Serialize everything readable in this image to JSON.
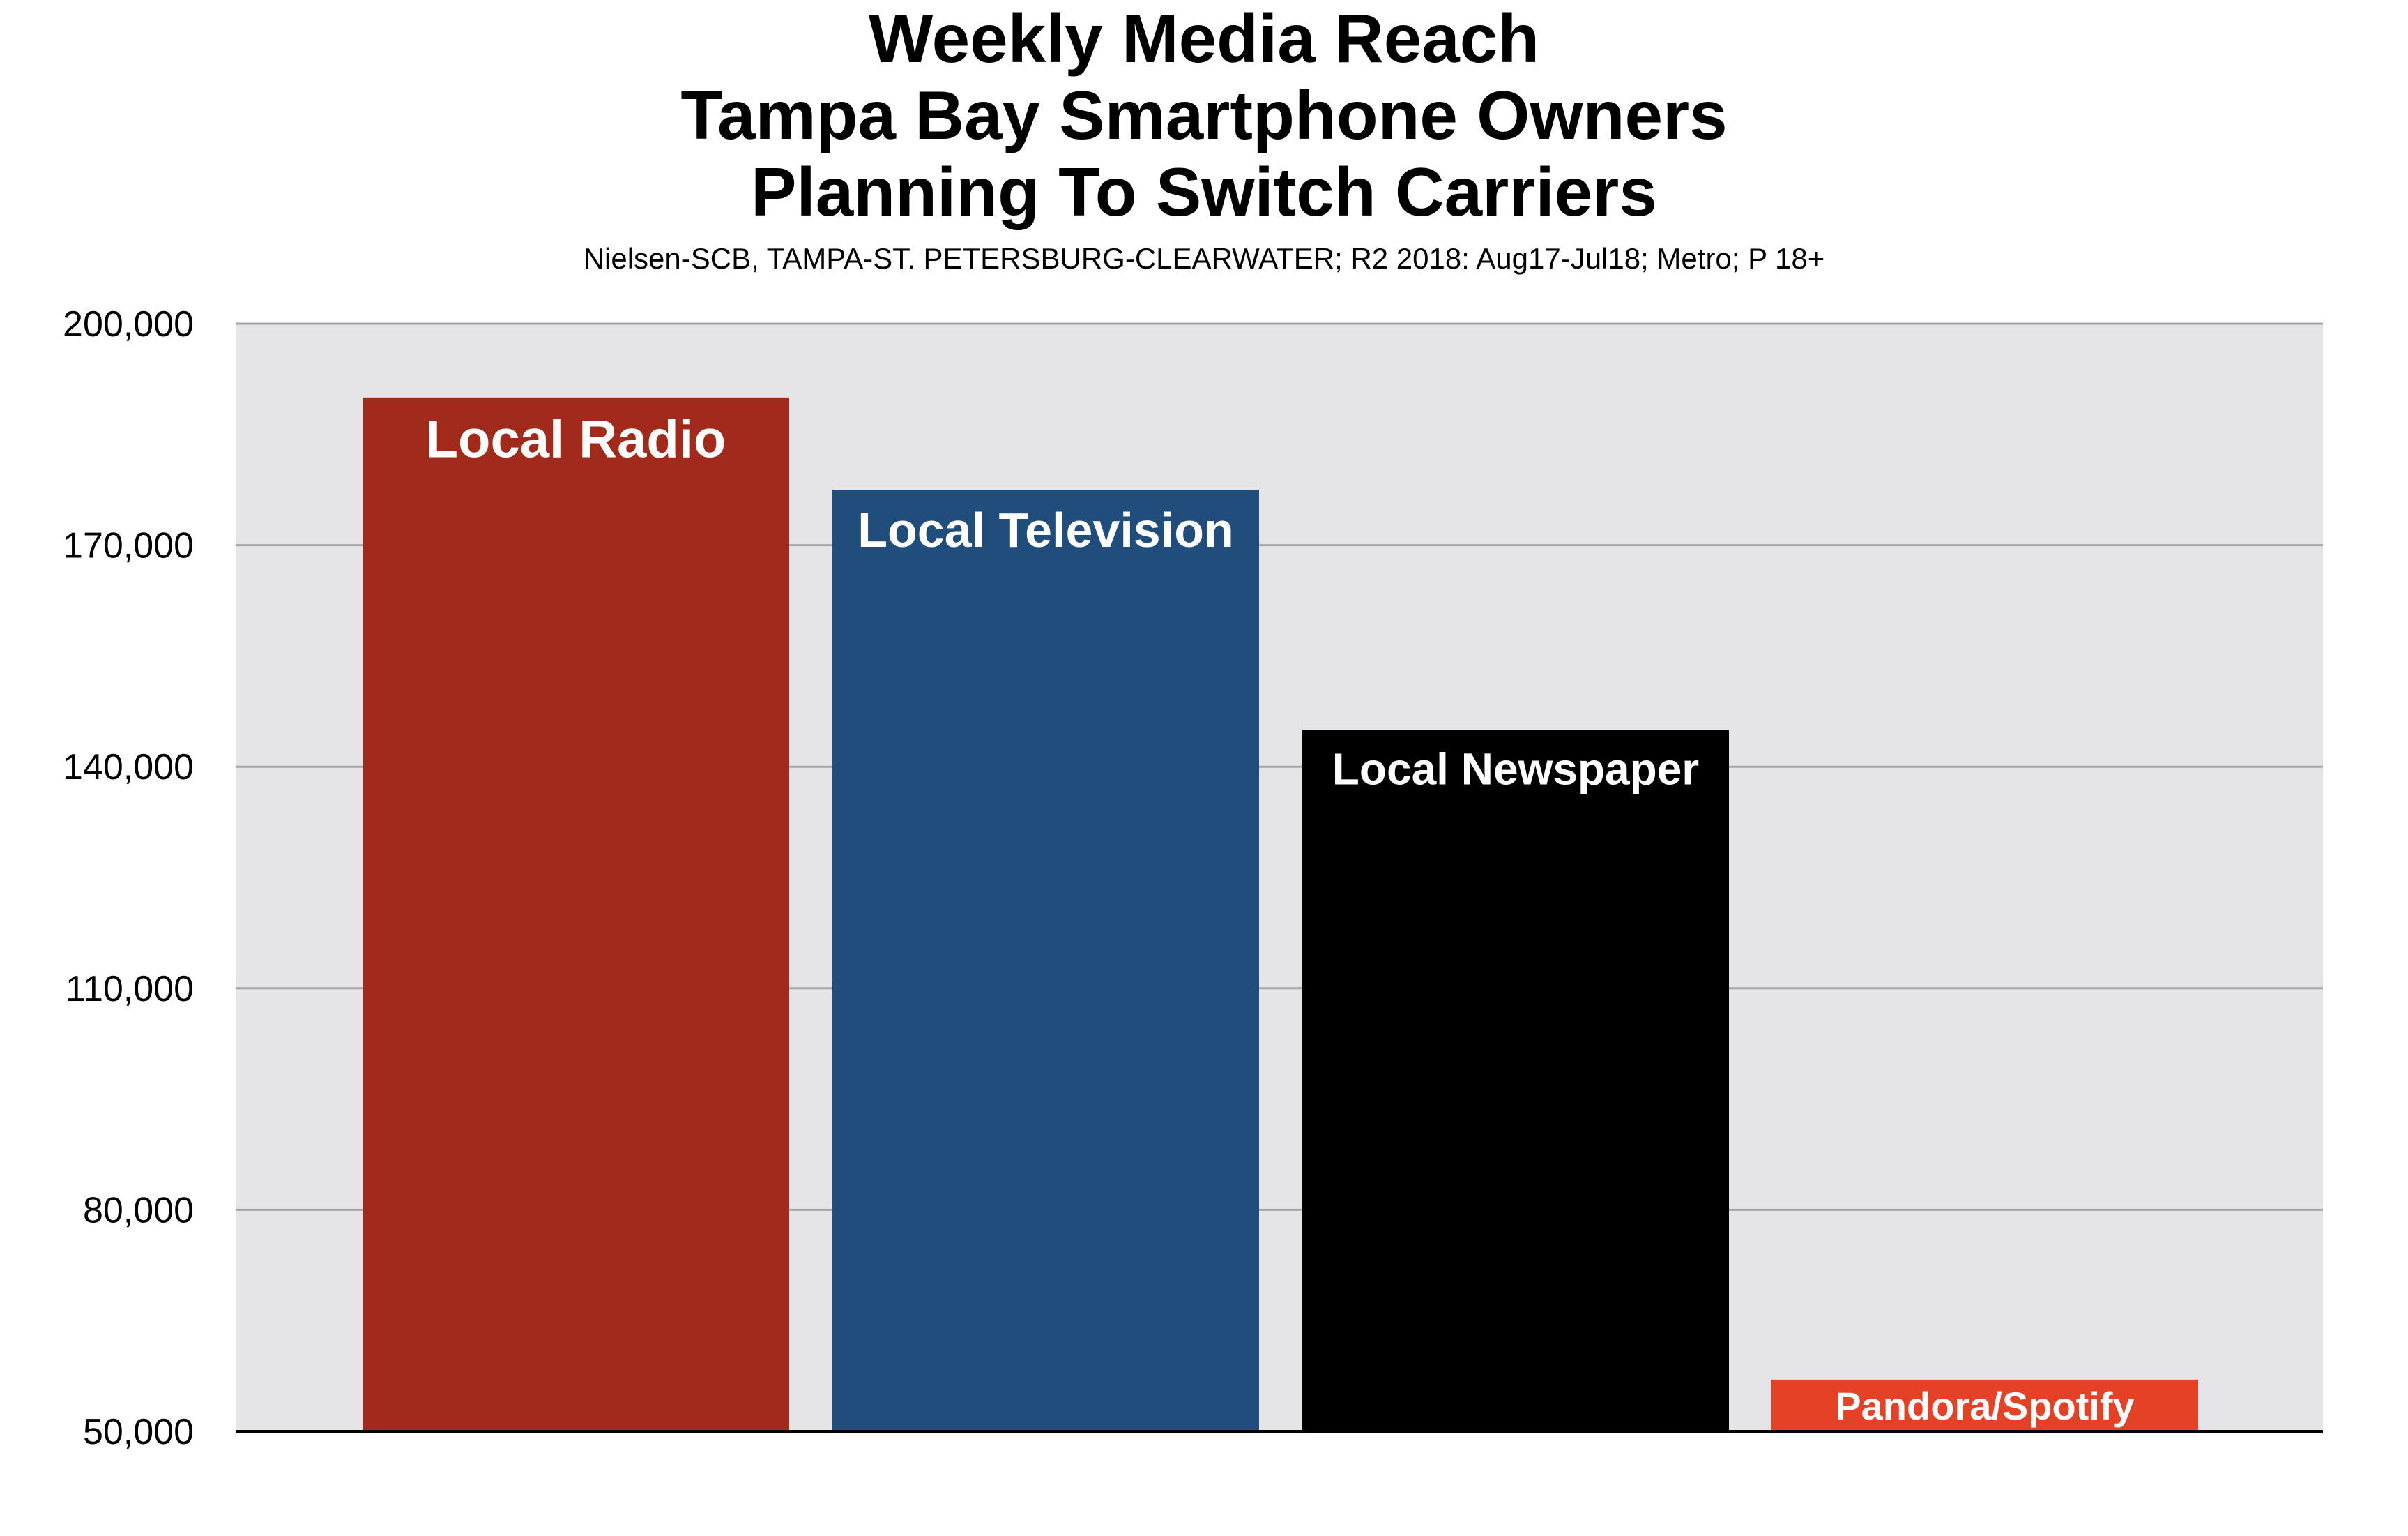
{
  "chart_data": {
    "type": "bar",
    "title": [
      "Weekly Media Reach",
      "Tampa Bay Smartphone Owners",
      "Planning To Switch Carriers"
    ],
    "subtitle": "Nielsen-SCB, TAMPA-ST. PETERSBURG-CLEARWATER; R2 2018: Aug17-Jul18; Metro; P 18+",
    "xlabel": "",
    "ylabel": "",
    "ylim": [
      50000,
      200000
    ],
    "yticks": [
      50000,
      80000,
      110000,
      140000,
      170000,
      200000
    ],
    "ytick_labels": [
      "50,000",
      "80,000",
      "110,000",
      "140,000",
      "170,000",
      "200,000"
    ],
    "grid": true,
    "legend": "none",
    "categories": [
      "Local Radio",
      "Local Television",
      "Local Newspaper",
      "Pandora/Spotify"
    ],
    "values": [
      190000,
      177500,
      145000,
      57000
    ],
    "colors": [
      "#a22a1a",
      "#214d7c",
      "#000000",
      "#e54127"
    ],
    "plot_background": "#e5e5e8",
    "gridline_color": "#a6a6a6",
    "label_color": "#ffffff"
  }
}
